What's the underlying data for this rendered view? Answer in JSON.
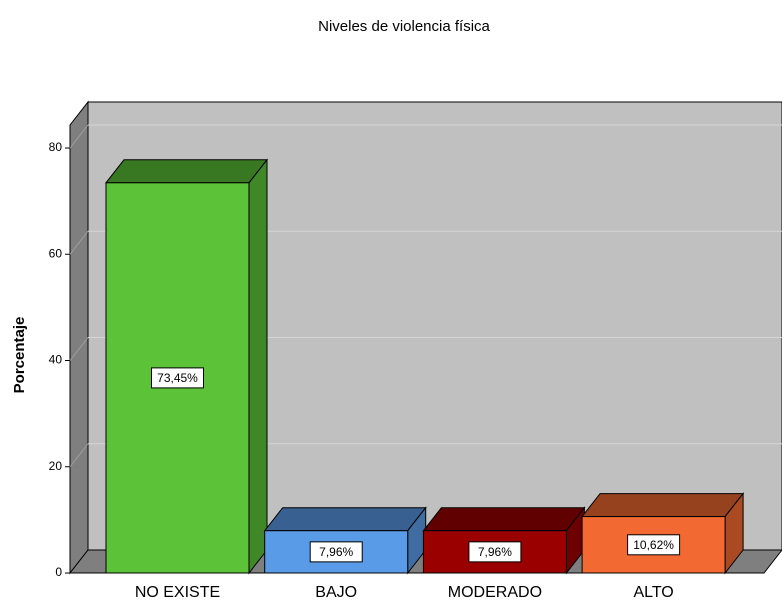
{
  "chart_data": {
    "type": "bar3d",
    "title": "Niveles de violencia física",
    "y_label": "Porcentaje",
    "categories": [
      "NO EXISTE",
      "BAJO",
      "MODERADO",
      "ALTO"
    ],
    "values": [
      73.45,
      7.96,
      7.96,
      10.62
    ],
    "value_labels": [
      "73,45%",
      "7,96%",
      "7,96%",
      "10,62%"
    ],
    "colors": [
      "#5cc238",
      "#5a9be8",
      "#9b0000",
      "#f26a32"
    ],
    "ylim": [
      0,
      84
    ],
    "yticks": [
      0,
      20,
      40,
      60,
      80
    ],
    "grid": true
  }
}
